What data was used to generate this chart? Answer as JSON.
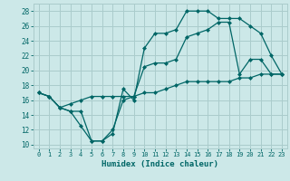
{
  "title": "",
  "xlabel": "Humidex (Indice chaleur)",
  "bg_color": "#cce8e8",
  "line_color": "#006666",
  "grid_color": "#aacccc",
  "xlim": [
    -0.5,
    23.5
  ],
  "ylim": [
    9.5,
    29.0
  ],
  "xticks": [
    0,
    1,
    2,
    3,
    4,
    5,
    6,
    7,
    8,
    9,
    10,
    11,
    12,
    13,
    14,
    15,
    16,
    17,
    18,
    19,
    20,
    21,
    22,
    23
  ],
  "yticks": [
    10,
    12,
    14,
    16,
    18,
    20,
    22,
    24,
    26,
    28
  ],
  "line1_y": [
    17.0,
    16.5,
    15.0,
    14.5,
    14.5,
    10.5,
    10.5,
    11.5,
    17.5,
    16.0,
    23.0,
    25.0,
    25.0,
    25.5,
    28.0,
    28.0,
    28.0,
    27.0,
    27.0,
    27.0,
    26.0,
    25.0,
    22.0,
    19.5
  ],
  "line2_y": [
    17.0,
    16.5,
    15.0,
    14.5,
    12.5,
    10.5,
    10.5,
    12.0,
    16.0,
    16.5,
    20.5,
    21.0,
    21.0,
    21.5,
    24.5,
    25.0,
    25.5,
    26.5,
    26.5,
    19.5,
    21.5,
    21.5,
    19.5,
    19.5
  ],
  "line3_y": [
    17.0,
    16.5,
    15.0,
    15.5,
    16.0,
    16.5,
    16.5,
    16.5,
    16.5,
    16.5,
    17.0,
    17.0,
    17.5,
    18.0,
    18.5,
    18.5,
    18.5,
    18.5,
    18.5,
    19.0,
    19.0,
    19.5,
    19.5,
    19.5
  ]
}
